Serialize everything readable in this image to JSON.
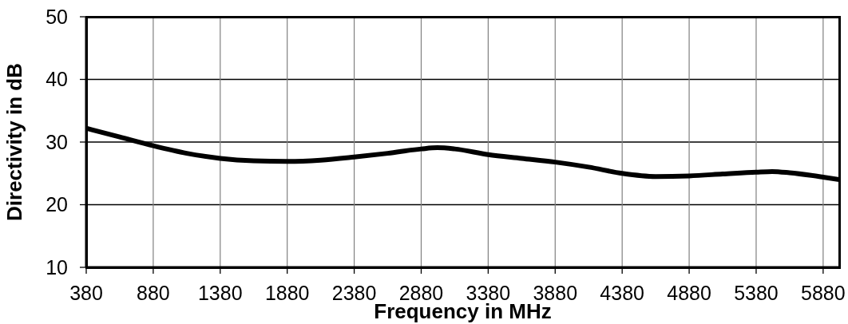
{
  "chart_data": {
    "type": "line",
    "xlabel": "Frequency in MHz",
    "ylabel": "Directivity in dB",
    "x": [
      380,
      630,
      880,
      1130,
      1380,
      1630,
      1880,
      2130,
      2380,
      2630,
      2880,
      3000,
      3130,
      3380,
      3630,
      3880,
      4130,
      4380,
      4630,
      4880,
      5130,
      5380,
      5500,
      5630,
      5880,
      6000
    ],
    "series": [
      {
        "color": "#000000",
        "values": [
          32.2,
          30.8,
          29.4,
          28.2,
          27.4,
          27.0,
          26.9,
          27.1,
          27.6,
          28.2,
          28.9,
          29.1,
          28.9,
          28.0,
          27.4,
          26.8,
          26.0,
          25.0,
          24.5,
          24.6,
          24.9,
          25.2,
          25.3,
          25.1,
          24.4,
          24.0
        ]
      }
    ],
    "xlim": [
      380,
      6000
    ],
    "xticks": [
      380,
      880,
      1380,
      1880,
      2380,
      2880,
      3380,
      3880,
      4380,
      4880,
      5380,
      5880
    ],
    "ylim": [
      10,
      50
    ],
    "yticks": [
      10,
      20,
      30,
      40,
      50
    ],
    "grid": true,
    "marker": "none",
    "line_style": "solid"
  }
}
